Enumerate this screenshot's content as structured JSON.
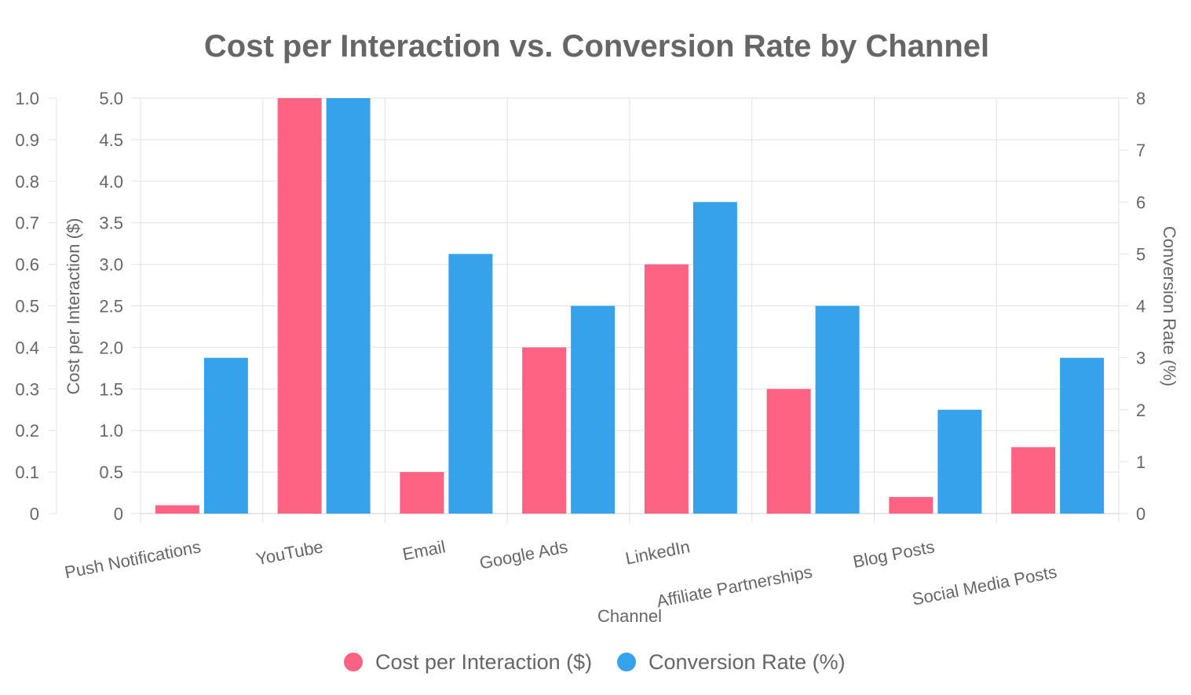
{
  "chart_data": {
    "type": "bar",
    "title": "Cost per Interaction vs. Conversion Rate by Channel",
    "xlabel": "Channel",
    "categories": [
      "Push Notifications",
      "YouTube",
      "Email",
      "Google Ads",
      "LinkedIn",
      "Affiliate Partnerships",
      "Blog Posts",
      "Social Media Posts"
    ],
    "series": [
      {
        "name": "Cost per Interaction ($)",
        "color": "#ff6384",
        "values": [
          0.1,
          5.0,
          0.5,
          2.0,
          3.0,
          1.5,
          0.2,
          0.8
        ]
      },
      {
        "name": "Conversion Rate (%)",
        "color": "#36a2eb",
        "values": [
          3.0,
          8.0,
          5.0,
          4.0,
          6.0,
          4.0,
          2.0,
          3.0
        ]
      }
    ],
    "axes": {
      "y_outer": {
        "title": "",
        "range": [
          0,
          1.0
        ],
        "ticks": [
          "0",
          "0.1",
          "0.2",
          "0.3",
          "0.4",
          "0.5",
          "0.6",
          "0.7",
          "0.8",
          "0.9",
          "1.0"
        ]
      },
      "y_left": {
        "title": "Cost per Interaction ($)",
        "range": [
          0,
          5.0
        ],
        "ticks": [
          "0",
          "0.5",
          "1.0",
          "1.5",
          "2.0",
          "2.5",
          "3.0",
          "3.5",
          "4.0",
          "4.5",
          "5.0"
        ]
      },
      "y_right": {
        "title": "Conversion Rate (%)",
        "range": [
          0,
          8
        ],
        "ticks": [
          "0",
          "1",
          "2",
          "3",
          "4",
          "5",
          "6",
          "7",
          "8"
        ]
      }
    },
    "grid": true,
    "legend_position": "bottom"
  }
}
